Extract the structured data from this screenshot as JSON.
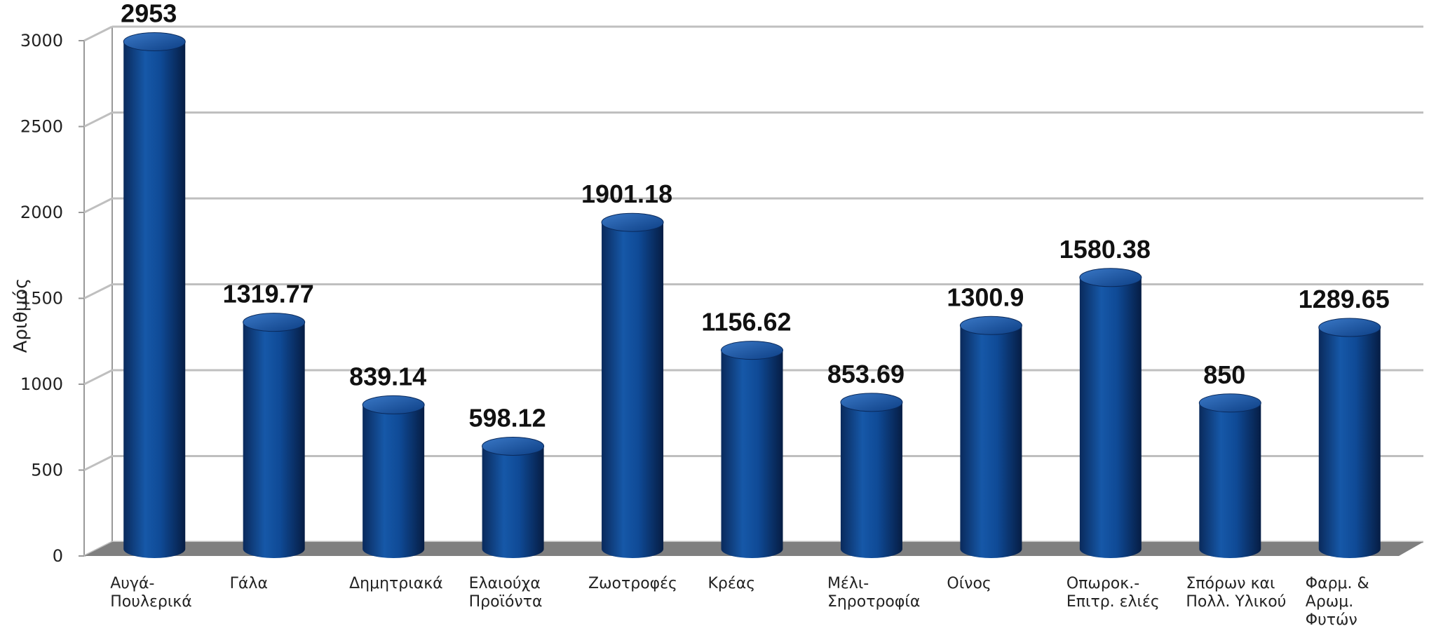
{
  "chart_data": {
    "type": "bar",
    "style": "3d-cylinder",
    "categories": [
      [
        "Αυγά-",
        "Πουλερικά"
      ],
      [
        "Γάλα"
      ],
      [
        "Δημητριακά"
      ],
      [
        "Ελαιούχα",
        "Προϊόντα"
      ],
      [
        "Ζωοτροφές"
      ],
      [
        "Κρέας"
      ],
      [
        "Μέλι-",
        "Σηροτροφία"
      ],
      [
        "Οίνος"
      ],
      [
        "Οπωροκ.-",
        "Επιτρ. ελιές"
      ],
      [
        "Σπόρων και",
        "Πολλ. Υλικού"
      ],
      [
        "Φαρμ. &",
        "Αρωμ.",
        "Φυτών"
      ]
    ],
    "values": [
      2953,
      1319.77,
      839.14,
      598.12,
      1901.18,
      1156.62,
      853.69,
      1300.9,
      1580.38,
      850,
      1289.65
    ],
    "data_labels": [
      "2953",
      "1319.77",
      "839.14",
      "598.12",
      "1901.18",
      "1156.62",
      "853.69",
      "1300.9",
      "1580.38",
      "850",
      "1289.65"
    ],
    "ylabel": "Αριθμός",
    "ylim": [
      0,
      3000
    ],
    "yticks": [
      0,
      500,
      1000,
      1500,
      2000,
      2500,
      3000
    ],
    "grid": true,
    "colors": {
      "bar_dark": "#0a2a5c",
      "bar_mid": "#0f4a96",
      "bar_light": "#2f6fc0",
      "floor": "#7f7f7f",
      "grid": "#bfbfbf",
      "frame": "#999999"
    }
  }
}
